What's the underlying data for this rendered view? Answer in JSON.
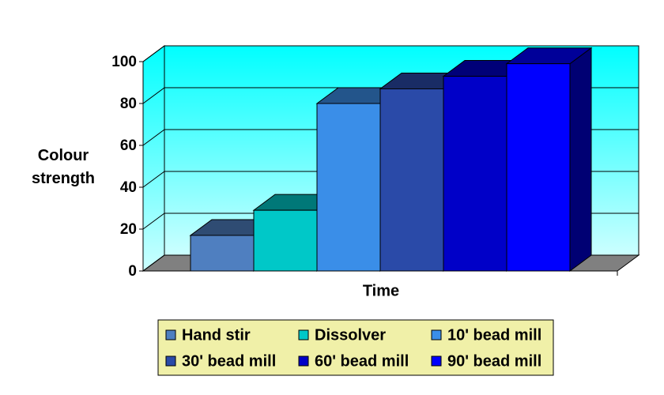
{
  "chart_data": {
    "type": "bar3d",
    "x_label": "Time",
    "y_label": "Colour strength",
    "categories": [
      null
    ],
    "series": [
      {
        "name": "Hand stir",
        "color": "#4f7fc0",
        "values": [
          17
        ]
      },
      {
        "name": "Dissolver",
        "color": "#00c8c8",
        "values": [
          29
        ]
      },
      {
        "name": "10' bead mill",
        "color": "#3a8ee8",
        "values": [
          80
        ]
      },
      {
        "name": "30' bead mill",
        "color": "#2a4aa8",
        "values": [
          87
        ]
      },
      {
        "name": "60' bead mill",
        "color": "#0000c8",
        "values": [
          93
        ]
      },
      {
        "name": "90' bead mill",
        "color": "#0000ff",
        "values": [
          99
        ]
      }
    ],
    "ylim": [
      0,
      100
    ],
    "yticks": [
      0,
      20,
      40,
      60,
      80,
      100
    ],
    "grid": true,
    "wall_color": "#00ffff",
    "floor_color": "#808080",
    "legend": "bottom"
  }
}
